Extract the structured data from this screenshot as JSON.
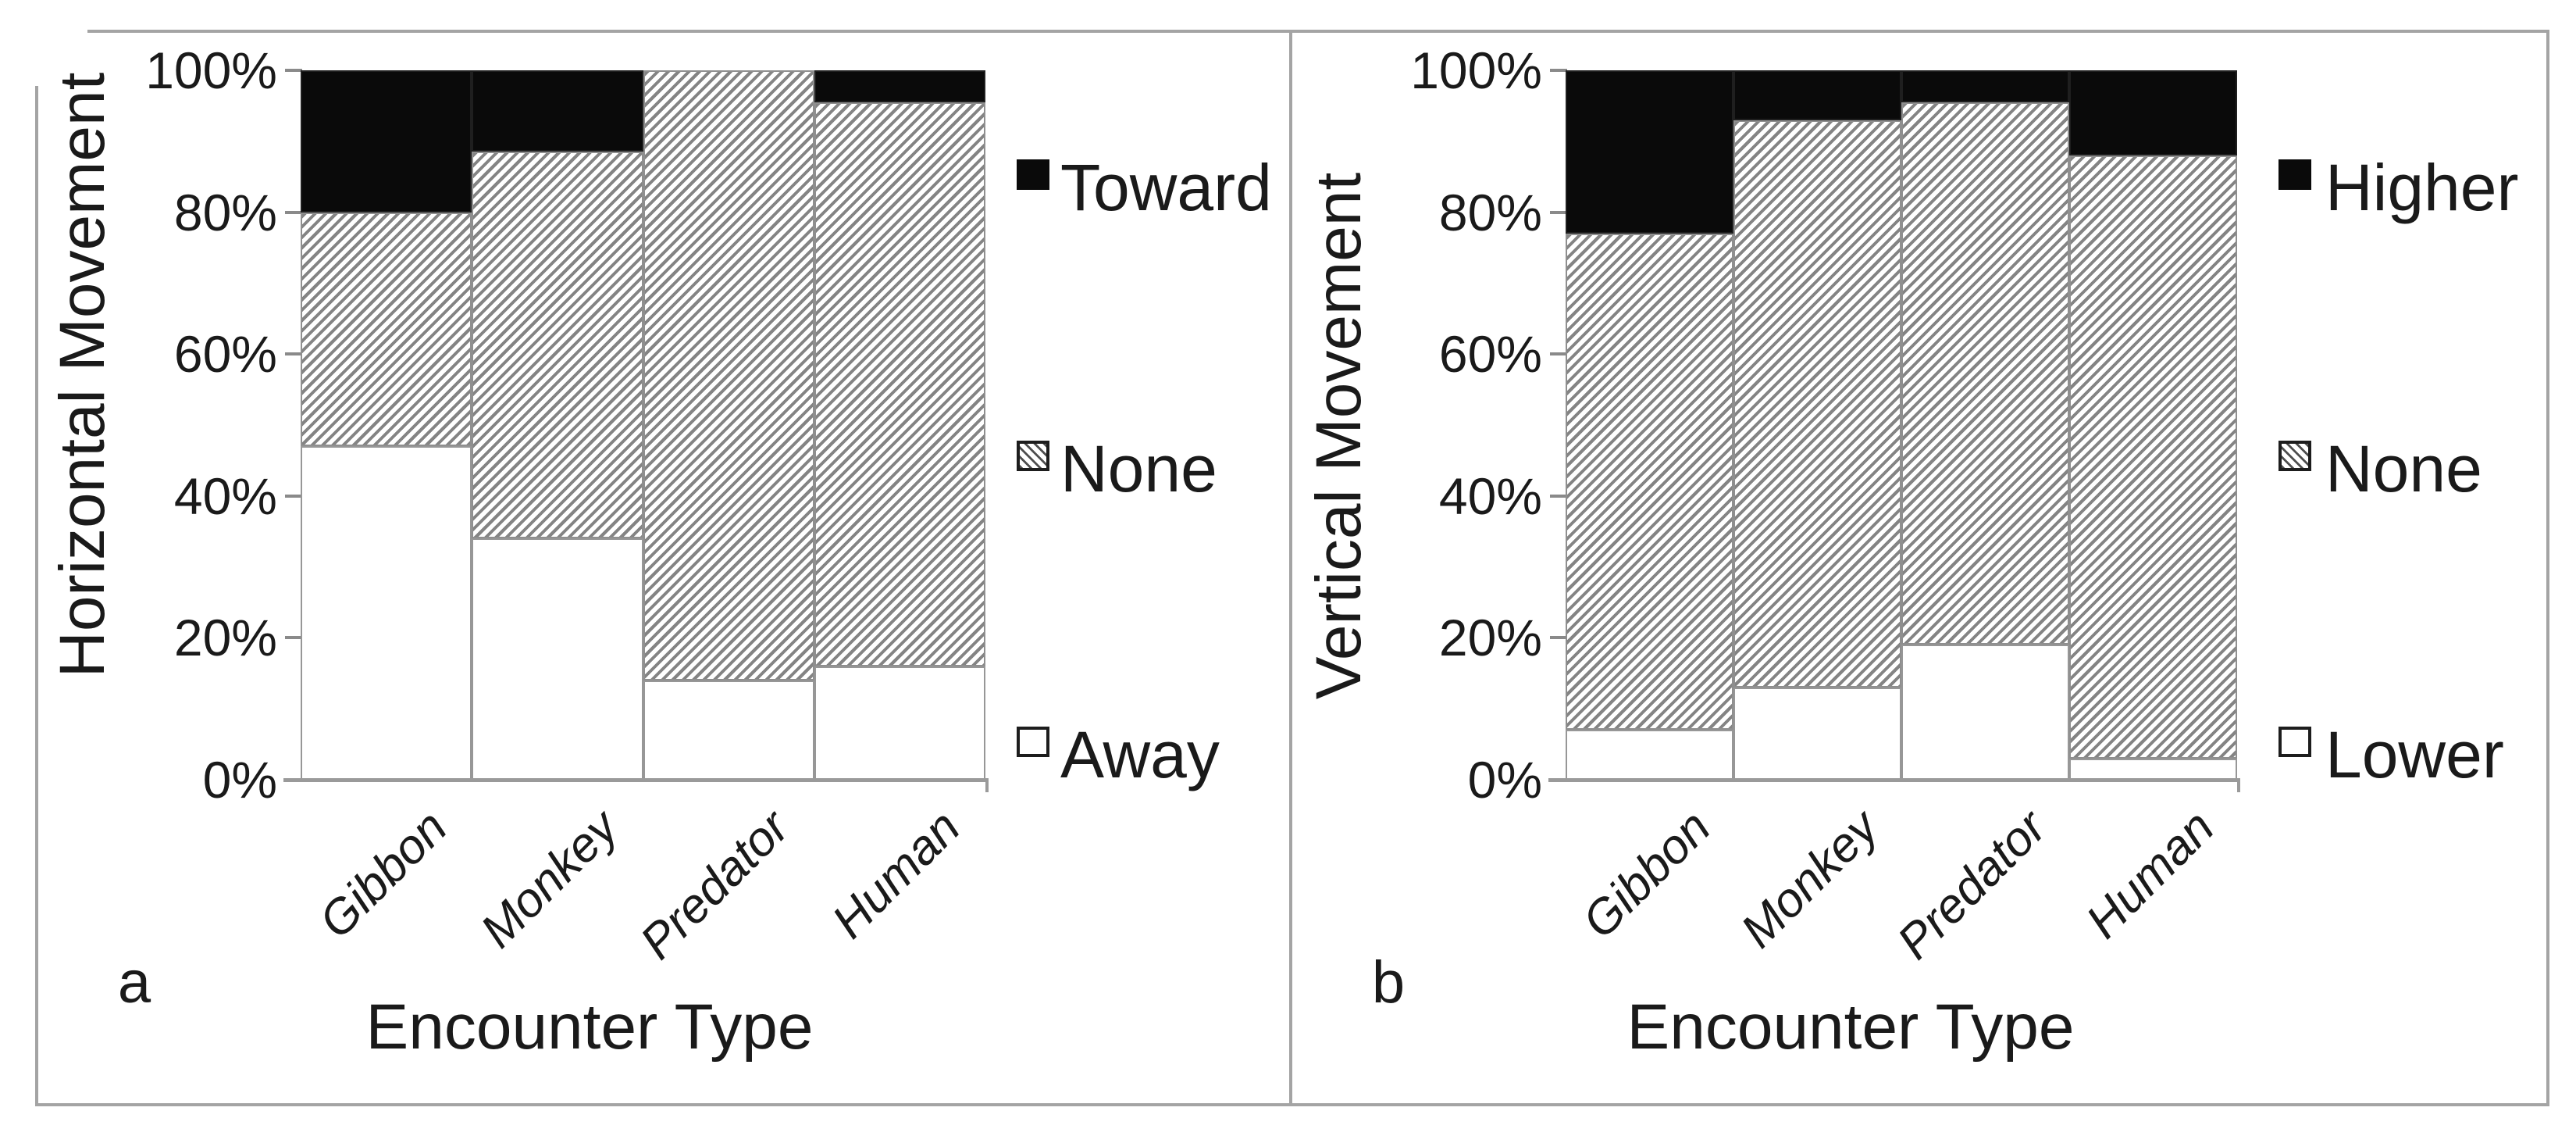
{
  "figure_label_a": "a",
  "figure_label_b": "b",
  "colors": {
    "bar_black": "#0a0a0a",
    "hatch_line_gray": "#848484",
    "frame_gray": "#a4a4a4",
    "text": "#1a1a1a"
  },
  "chart_data": [
    {
      "type": "bar",
      "stacked": true,
      "units": "percent",
      "panel_label": "a",
      "title": "",
      "ylabel": "Horizontal Movement",
      "xlabel": "Encounter Type",
      "categories": [
        "Gibbon",
        "Monkey",
        "Predator",
        "Human"
      ],
      "series": [
        {
          "name": "Away",
          "pattern": "white",
          "values": [
            47,
            34,
            14,
            16
          ]
        },
        {
          "name": "None",
          "pattern": "diagonal-hatch",
          "values": [
            33,
            54.5,
            86,
            79.5
          ]
        },
        {
          "name": "Toward",
          "pattern": "solid-black",
          "values": [
            20,
            11.5,
            0,
            4.5
          ]
        }
      ],
      "ylim": [
        0,
        100
      ],
      "yticks_top_down": [
        "100%",
        "80%",
        "60%",
        "40%",
        "20%",
        "0%"
      ],
      "grid": false,
      "legend_position": "right",
      "legend_top_down": [
        "Toward",
        "None",
        "Away"
      ]
    },
    {
      "type": "bar",
      "stacked": true,
      "units": "percent",
      "panel_label": "b",
      "title": "",
      "ylabel": "Vertical Movement",
      "xlabel": "Encounter Type",
      "categories": [
        "Gibbon",
        "Monkey",
        "Predator",
        "Human"
      ],
      "series": [
        {
          "name": "Lower",
          "pattern": "white",
          "values": [
            7,
            13,
            19,
            3
          ]
        },
        {
          "name": "None",
          "pattern": "diagonal-hatch",
          "values": [
            70,
            80,
            76.5,
            85
          ]
        },
        {
          "name": "Higher",
          "pattern": "solid-black",
          "values": [
            23,
            7,
            4.5,
            12
          ]
        }
      ],
      "ylim": [
        0,
        100
      ],
      "yticks_top_down": [
        "100%",
        "80%",
        "60%",
        "40%",
        "20%",
        "0%"
      ],
      "grid": false,
      "legend_position": "right",
      "legend_top_down": [
        "Higher",
        "None",
        "Lower"
      ]
    }
  ]
}
